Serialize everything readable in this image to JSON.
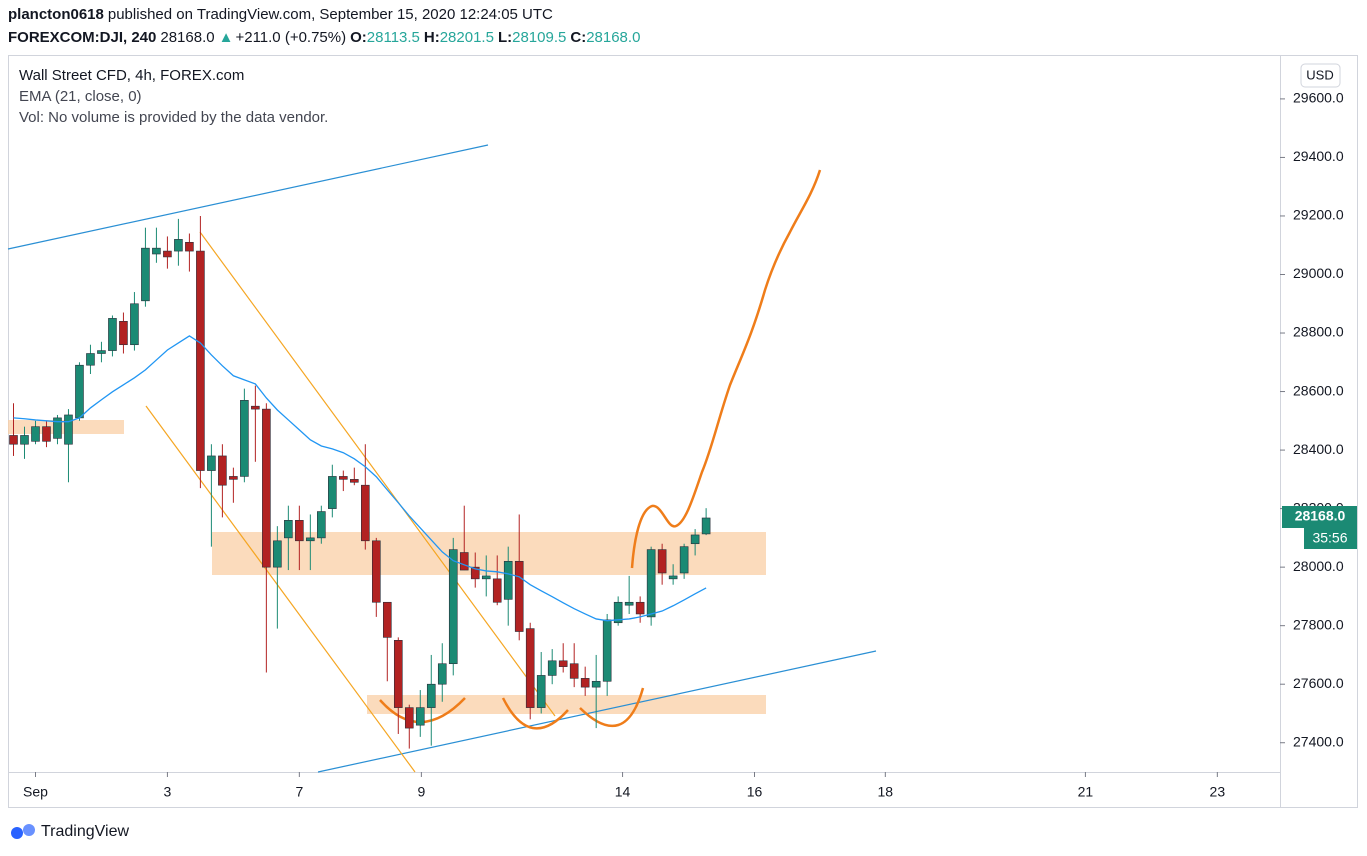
{
  "header": {
    "user": "plancton0618",
    "published": "published on TradingView.com, September 15, 2020 12:24:05 UTC",
    "symbol": "FOREXCOM:DJI, 240",
    "last": "28168.0",
    "arrow": "▲",
    "change": "+211.0 (+0.75%)",
    "o_label": "O:",
    "o": "28113.5",
    "h_label": "H:",
    "h": "28201.5",
    "l_label": "L:",
    "l": "28109.5",
    "c_label": "C:",
    "c": "28168.0"
  },
  "logo": "TradingView",
  "chart_data": {
    "type": "candlestick",
    "title": "Wall Street CFD, 4h, FOREX.com",
    "annotations": [
      "Vol: No volume is provided by the data vendor."
    ],
    "currency": "USD",
    "price_label": "28168.0",
    "countdown": "35:56",
    "up_color": "#1b8a74",
    "down_color": "#b22222",
    "x": [
      0,
      1,
      2,
      3,
      4,
      5,
      6,
      7,
      8,
      9,
      10,
      11,
      12,
      13,
      14,
      15,
      16,
      17,
      18,
      19,
      20,
      21,
      22,
      23,
      24,
      25,
      26,
      27,
      28,
      29,
      30,
      31,
      32,
      33,
      34,
      35,
      36,
      37,
      38,
      39,
      40,
      41,
      42,
      43,
      44,
      45,
      46,
      47,
      48,
      49,
      50,
      51,
      52,
      53,
      54,
      55,
      56,
      57,
      58,
      59,
      60,
      61,
      62,
      63
    ],
    "open": [
      28450,
      28420,
      28430,
      28480,
      28440,
      28420,
      28510,
      28690,
      28730,
      28740,
      28840,
      28760,
      28910,
      29070,
      29080,
      29080,
      29110,
      29080,
      28330,
      28380,
      28310,
      28310,
      28550,
      28540,
      28000,
      28100,
      28160,
      28090,
      28100,
      28200,
      28310,
      28300,
      28280,
      28090,
      27880,
      27750,
      27520,
      27460,
      27520,
      27600,
      27670,
      28050,
      28000,
      27960,
      27960,
      27890,
      28020,
      27790,
      27520,
      27630,
      27680,
      27670,
      27620,
      27590,
      27610,
      27810,
      27870,
      27880,
      27830,
      28060,
      27960,
      27980,
      28080,
      28113.5
    ],
    "high": [
      28560,
      28480,
      28500,
      28500,
      28520,
      28540,
      28700,
      28760,
      28770,
      28860,
      28870,
      28940,
      29160,
      29160,
      29130,
      29190,
      29140,
      29200,
      28420,
      28420,
      28340,
      28610,
      28620,
      28560,
      28140,
      28210,
      28210,
      28180,
      28210,
      28350,
      28330,
      28340,
      28420,
      28100,
      27880,
      27760,
      27530,
      27580,
      27700,
      27740,
      28100,
      28210,
      28050,
      28040,
      28040,
      28070,
      28180,
      27810,
      27710,
      27720,
      27740,
      27740,
      27660,
      27700,
      27840,
      27900,
      27970,
      27900,
      28070,
      28080,
      28010,
      28080,
      28130,
      28201.5
    ],
    "low": [
      28380,
      28370,
      28420,
      28410,
      28420,
      28290,
      28500,
      28660,
      28700,
      28720,
      28730,
      28740,
      28890,
      29040,
      29020,
      29030,
      29010,
      28270,
      28070,
      28170,
      28220,
      28290,
      28360,
      27640,
      27790,
      27990,
      27990,
      27990,
      28080,
      28170,
      28260,
      28280,
      28060,
      27830,
      27610,
      27430,
      27380,
      27420,
      27390,
      27540,
      27630,
      27990,
      27930,
      27900,
      27870,
      27800,
      27750,
      27480,
      27500,
      27600,
      27640,
      27590,
      27560,
      27450,
      27560,
      27800,
      27840,
      27810,
      27800,
      27940,
      27940,
      27960,
      28040,
      28109.5
    ],
    "close": [
      28420,
      28450,
      28480,
      28430,
      28510,
      28520,
      28690,
      28730,
      28740,
      28850,
      28760,
      28900,
      29090,
      29090,
      29060,
      29120,
      29080,
      28330,
      28380,
      28280,
      28300,
      28570,
      28540,
      28000,
      28090,
      28160,
      28090,
      28100,
      28190,
      28310,
      28300,
      28290,
      28090,
      27880,
      27760,
      27520,
      27450,
      27520,
      27600,
      27670,
      28060,
      27990,
      27960,
      27970,
      27880,
      28020,
      27780,
      27520,
      27630,
      27680,
      27660,
      27620,
      27590,
      27610,
      27820,
      27880,
      27880,
      27840,
      28060,
      27980,
      27970,
      28070,
      28110,
      28168
    ],
    "series": [
      {
        "name": "EMA (21, close, 0)",
        "color": "#2196f3",
        "values": [
          28510,
          28507,
          28503,
          28500,
          28497,
          28497,
          28510,
          28544,
          28572,
          28599,
          28623,
          28647,
          28674,
          28708,
          28742,
          28766,
          28790,
          28766,
          28725,
          28688,
          28654,
          28640,
          28626,
          28578,
          28537,
          28503,
          28469,
          28435,
          28414,
          28404,
          28391,
          28370,
          28343,
          28309,
          28264,
          28220,
          28175,
          28134,
          28093,
          28052,
          28022,
          28008,
          27994,
          27987,
          27984,
          27977,
          27967,
          27940,
          27919,
          27899,
          27878,
          27858,
          27840,
          27823,
          27817,
          27820,
          27823,
          27830,
          27840,
          27850,
          27868,
          27888,
          27909,
          27929
        ]
      }
    ],
    "xlim": [
      -0.5,
      115.2
    ],
    "xticks": [
      {
        "value": 2,
        "label": "Sep"
      },
      {
        "value": 14,
        "label": "3"
      },
      {
        "value": 26,
        "label": "7"
      },
      {
        "value": 37.1,
        "label": "9"
      },
      {
        "value": 55.4,
        "label": "14"
      },
      {
        "value": 67.4,
        "label": "16"
      },
      {
        "value": 79.3,
        "label": "18"
      },
      {
        "value": 97.5,
        "label": "21"
      },
      {
        "value": 109.5,
        "label": "23"
      }
    ],
    "ylim": [
      27300,
      29750
    ],
    "yticks": [
      {
        "value": 27400,
        "label": "27400.0"
      },
      {
        "value": 27600,
        "label": "27600.0"
      },
      {
        "value": 27800,
        "label": "27800.0"
      },
      {
        "value": 28000,
        "label": "28000.0"
      },
      {
        "value": 28200,
        "label": "28200.0"
      },
      {
        "value": 28400,
        "label": "28400.0"
      },
      {
        "value": 28600,
        "label": "28600.0"
      },
      {
        "value": 28800,
        "label": "28800.0"
      },
      {
        "value": 29000,
        "label": "29000.0"
      },
      {
        "value": 29200,
        "label": "29200.0"
      },
      {
        "value": 29400,
        "label": "29400.0"
      },
      {
        "value": 29600,
        "label": "29600.0"
      }
    ]
  }
}
